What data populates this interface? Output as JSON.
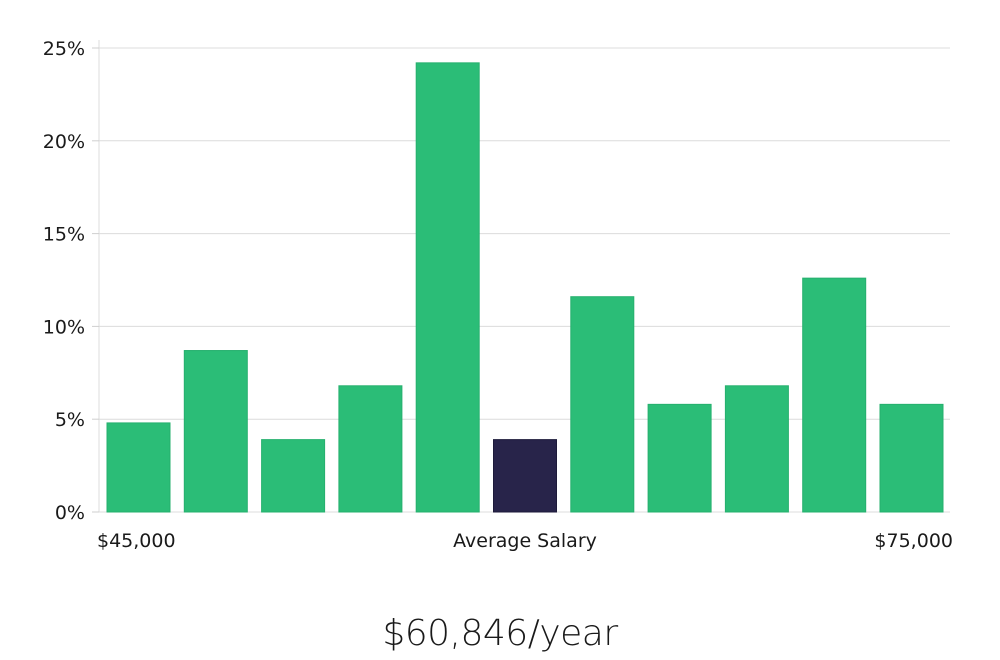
{
  "chart_data": {
    "type": "bar",
    "title": "",
    "xlabel": "Average Salary",
    "ylabel": "",
    "x_range_labels": {
      "min": "$45,000",
      "max": "$75,000"
    },
    "ylim": [
      0,
      25
    ],
    "y_ticks": [
      0,
      5,
      10,
      15,
      20,
      25
    ],
    "y_tick_labels": [
      "0%",
      "5%",
      "10%",
      "15%",
      "20%",
      "25%"
    ],
    "values": [
      4.8,
      8.7,
      3.9,
      6.8,
      24.2,
      3.9,
      11.6,
      5.8,
      6.8,
      12.6,
      5.8
    ],
    "highlight_index": 5,
    "bar_color": "#2bbd77",
    "highlight_color": "#28244a",
    "grid": true
  },
  "summary": {
    "average_salary": "$60,846/year"
  }
}
